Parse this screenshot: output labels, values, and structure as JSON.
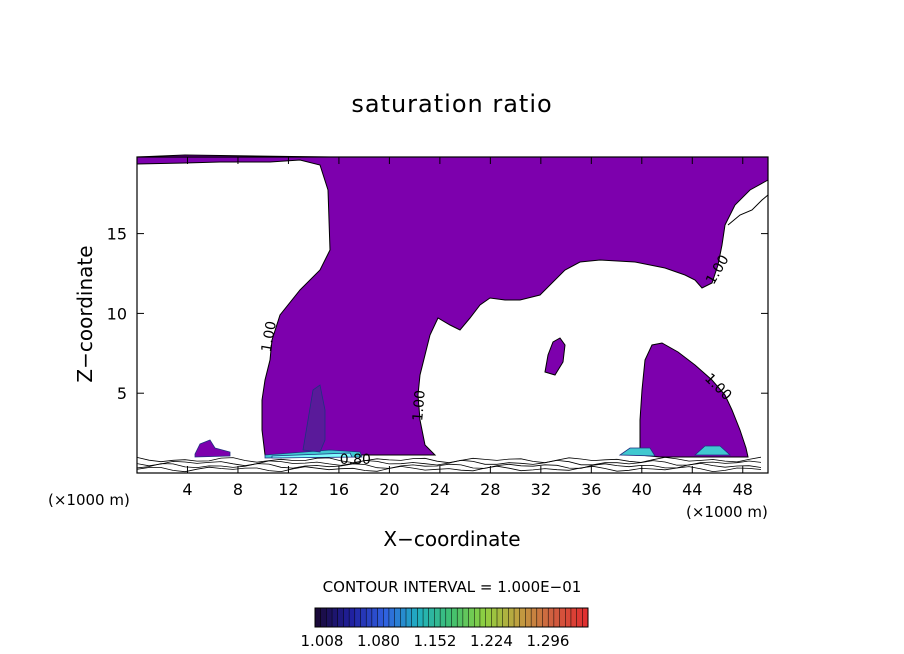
{
  "chart_data": {
    "type": "contour",
    "title": "saturation ratio",
    "xlabel": "X−coordinate",
    "ylabel": "Z−coordinate",
    "x_unit_label": "(×1000 m)",
    "x_unit_label_right": "(×1000 m)",
    "xlim": [
      0,
      50
    ],
    "ylim": [
      0,
      19.8
    ],
    "x_ticks": [
      4,
      8,
      12,
      16,
      20,
      24,
      28,
      32,
      36,
      40,
      44,
      48
    ],
    "y_ticks": [
      5,
      10,
      15
    ],
    "contour_labels": [
      {
        "text": "1.00",
        "x": 10.8,
        "y": 8.5,
        "angle": -80
      },
      {
        "text": "1.00",
        "x": 22.7,
        "y": 4.2,
        "angle": -85
      },
      {
        "text": "1.00",
        "x": 46.3,
        "y": 12.6,
        "angle": -60
      },
      {
        "text": "1.00",
        "x": 45.8,
        "y": 5.2,
        "angle": 45
      },
      {
        "text": "0.80",
        "x": 17.3,
        "y": 0.55,
        "angle": 0
      }
    ],
    "contour_interval_label": "CONTOUR INTERVAL = 1.000E−01",
    "colorbar": {
      "ticks": [
        "1.008",
        "1.080",
        "1.152",
        "1.224",
        "1.296"
      ],
      "colors": [
        "#1a0a3a",
        "#2020a0",
        "#3060e0",
        "#20b0c0",
        "#40c070",
        "#90d040",
        "#c0a040",
        "#d06040",
        "#e03030"
      ]
    },
    "fill_color": "#7d00ad",
    "grid": false
  }
}
